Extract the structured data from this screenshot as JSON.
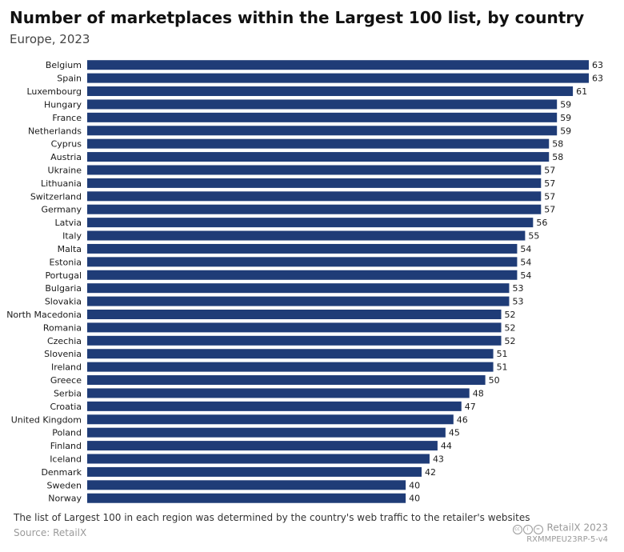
{
  "title": "Number of marketplaces within the Largest 100 list, by country",
  "subtitle": "Europe, 2023",
  "note": "The list of Largest 100 in each region was determined by the country's web traffic to the retailer's websites",
  "source": "Source: RetailX",
  "brand": "RetailX 2023",
  "code": "RXMMPEU23RP-5-v4",
  "colors": {
    "bar": "#1f3c77",
    "text": "#1a1a1a"
  },
  "chart_data": {
    "type": "bar",
    "orientation": "horizontal",
    "categories": [
      "Belgium",
      "Spain",
      "Luxembourg",
      "Hungary",
      "France",
      "Netherlands",
      "Cyprus",
      "Austria",
      "Ukraine",
      "Lithuania",
      "Switzerland",
      "Germany",
      "Latvia",
      "Italy",
      "Malta",
      "Estonia",
      "Portugal",
      "Bulgaria",
      "Slovakia",
      "North Macedonia",
      "Romania",
      "Czechia",
      "Slovenia",
      "Ireland",
      "Greece",
      "Serbia",
      "Croatia",
      "United Kingdom",
      "Poland",
      "Finland",
      "Iceland",
      "Denmark",
      "Sweden",
      "Norway"
    ],
    "values": [
      63,
      63,
      61,
      59,
      59,
      59,
      58,
      58,
      57,
      57,
      57,
      57,
      56,
      55,
      54,
      54,
      54,
      53,
      53,
      52,
      52,
      52,
      51,
      51,
      50,
      48,
      47,
      46,
      45,
      44,
      43,
      42,
      40,
      40
    ],
    "xlim": [
      0,
      63
    ],
    "grid": false,
    "data_labels": true
  }
}
